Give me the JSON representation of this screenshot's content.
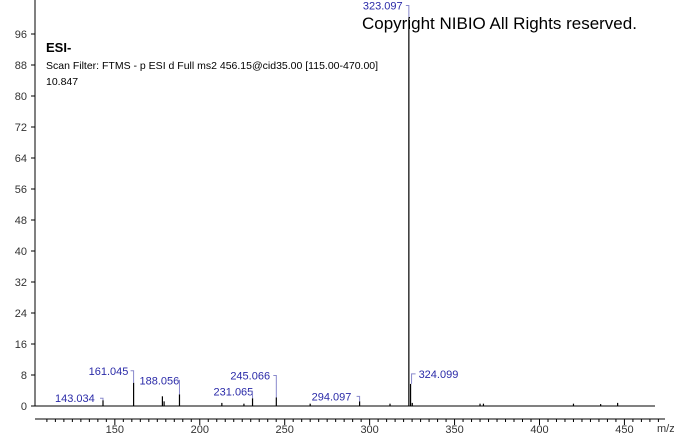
{
  "chart_data": {
    "type": "bar",
    "xlabel": "m/z",
    "ylabel": "",
    "xlim": [
      103,
      468
    ],
    "ylim": [
      0,
      100
    ],
    "x_ticks": [
      150,
      200,
      250,
      300,
      350,
      400,
      450
    ],
    "y_ticks": [
      0,
      8,
      16,
      24,
      32,
      40,
      48,
      56,
      64,
      72,
      80,
      88,
      96
    ],
    "grid": false,
    "peaks": [
      {
        "mz": 323.097,
        "intensity": 100,
        "label": "323.097"
      },
      {
        "mz": 324.099,
        "intensity": 5.7,
        "label": "324.099"
      },
      {
        "mz": 161.045,
        "intensity": 6,
        "label": "161.045"
      },
      {
        "mz": 143.034,
        "intensity": 1.5,
        "label": "143.034"
      },
      {
        "mz": 188.056,
        "intensity": 3,
        "label": "188.056"
      },
      {
        "mz": 231.065,
        "intensity": 2,
        "label": "231.065"
      },
      {
        "mz": 245.066,
        "intensity": 2.2,
        "label": "245.066"
      },
      {
        "mz": 294.097,
        "intensity": 1.2,
        "label": "294.097"
      },
      {
        "mz": 178.0,
        "intensity": 2.5
      },
      {
        "mz": 179.0,
        "intensity": 1.2
      },
      {
        "mz": 213.0,
        "intensity": 0.8
      },
      {
        "mz": 226.0,
        "intensity": 0.6
      },
      {
        "mz": 265.0,
        "intensity": 0.6
      },
      {
        "mz": 312.0,
        "intensity": 0.6
      },
      {
        "mz": 325.1,
        "intensity": 0.8
      },
      {
        "mz": 365.0,
        "intensity": 0.6
      },
      {
        "mz": 367.0,
        "intensity": 0.6
      },
      {
        "mz": 420.0,
        "intensity": 0.6
      },
      {
        "mz": 436.0,
        "intensity": 0.5
      },
      {
        "mz": 446.0,
        "intensity": 0.8
      }
    ]
  },
  "annotations": {
    "copyright": "Copyright NIBIO All Rights reserved.",
    "ionization": "ESI-",
    "scan_filter": "Scan Filter: FTMS - p ESI d Full ms2 456.15@cid35.00 [115.00-470.00]",
    "retention": "10.847"
  },
  "colors": {
    "peak": "#000000",
    "label": "#2a2aa8"
  }
}
